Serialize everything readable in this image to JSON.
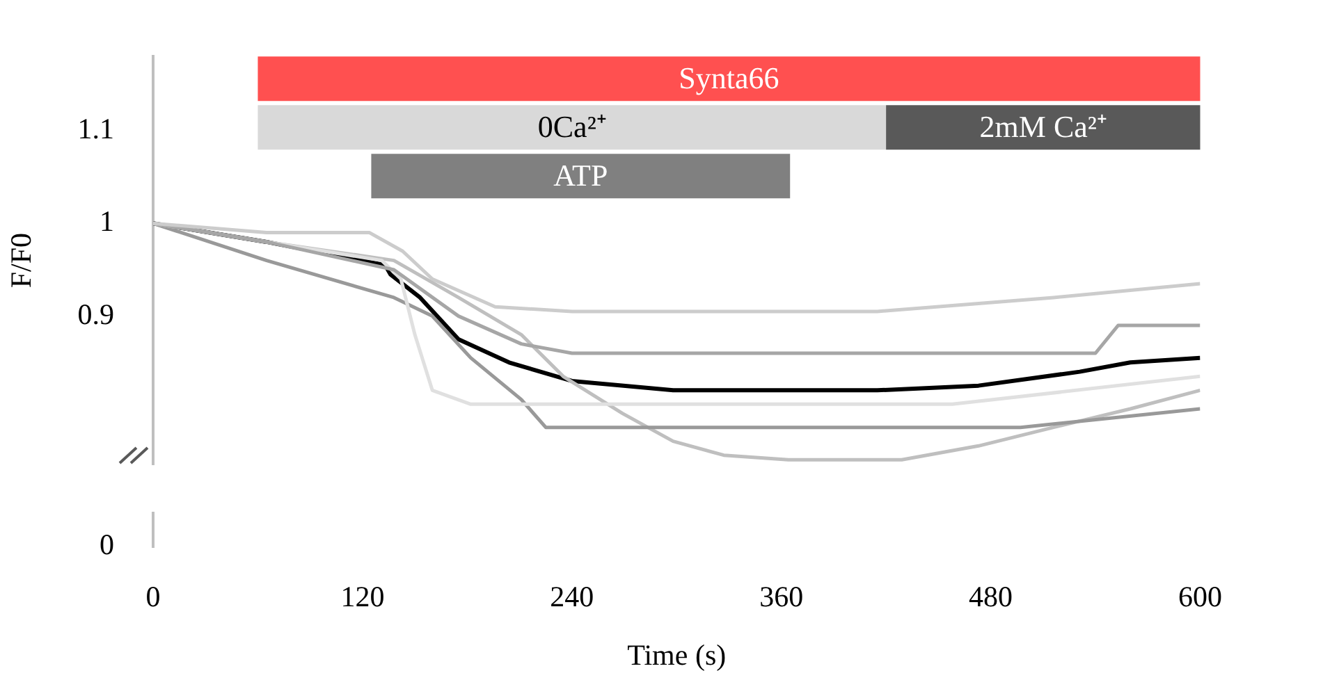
{
  "chart_data": {
    "type": "line",
    "xlabel": "Time (s)",
    "ylabel": "F/F0",
    "xlim": [
      0,
      600
    ],
    "xticks": [
      0,
      120,
      240,
      360,
      480,
      600
    ],
    "ylim": [
      0.74,
      1.18
    ],
    "yticks": [
      0.9,
      1,
      1.1
    ],
    "annotations": [
      "0"
    ],
    "series": [
      {
        "color": "#cccccc",
        "x": [
          0,
          65,
          124,
          143,
          160,
          196,
          240,
          415,
          516,
          600
        ],
        "values": [
          1,
          0.99,
          0.99,
          0.97,
          0.94,
          0.91,
          0.905,
          0.905,
          0.92,
          0.935
        ]
      },
      {
        "color": "#a6a6a6",
        "x": [
          0,
          65,
          138,
          175,
          211,
          240,
          540,
          553,
          600
        ],
        "values": [
          1,
          0.98,
          0.95,
          0.9,
          0.87,
          0.86,
          0.86,
          0.89,
          0.89
        ]
      },
      {
        "color": "#e0e0e0",
        "x": [
          0,
          65,
          131,
          142,
          150,
          160,
          182,
          458,
          600
        ],
        "values": [
          1,
          0.98,
          0.96,
          0.94,
          0.88,
          0.82,
          0.805,
          0.805,
          0.835
        ]
      },
      {
        "color": "#999999",
        "x": [
          0,
          65,
          138,
          160,
          182,
          211,
          225,
          497,
          600
        ],
        "values": [
          1,
          0.96,
          0.92,
          0.9,
          0.855,
          0.81,
          0.78,
          0.78,
          0.8
        ]
      },
      {
        "color": "#bfbfbf",
        "x": [
          0,
          65,
          138,
          175,
          211,
          235,
          269,
          298,
          327,
          364,
          429,
          473,
          516,
          560,
          600
        ],
        "values": [
          1,
          0.98,
          0.96,
          0.92,
          0.88,
          0.835,
          0.795,
          0.765,
          0.75,
          0.745,
          0.745,
          0.76,
          0.78,
          0.8,
          0.82
        ]
      },
      {
        "color": "#000000",
        "x": [
          0,
          65,
          133,
          136,
          153,
          175,
          204,
          240,
          298,
          356,
          415,
          473,
          531,
          560,
          600
        ],
        "values": [
          1,
          0.98,
          0.955,
          0.945,
          0.92,
          0.875,
          0.85,
          0.83,
          0.82,
          0.82,
          0.82,
          0.825,
          0.84,
          0.85,
          0.855
        ]
      }
    ],
    "bands": [
      {
        "axis": "x",
        "from": 60,
        "to": 600,
        "label": "Synta66",
        "color": "#ff5050"
      },
      {
        "axis": "x",
        "from": 60,
        "to": 420,
        "label": "0Ca²⁺",
        "color": "#d9d9d9"
      },
      {
        "axis": "x",
        "from": 420,
        "to": 600,
        "label": "2mM Ca²⁺",
        "color": "#595959"
      },
      {
        "axis": "x",
        "from": 125,
        "to": 365,
        "label": "ATP",
        "color": "#808080"
      }
    ]
  }
}
